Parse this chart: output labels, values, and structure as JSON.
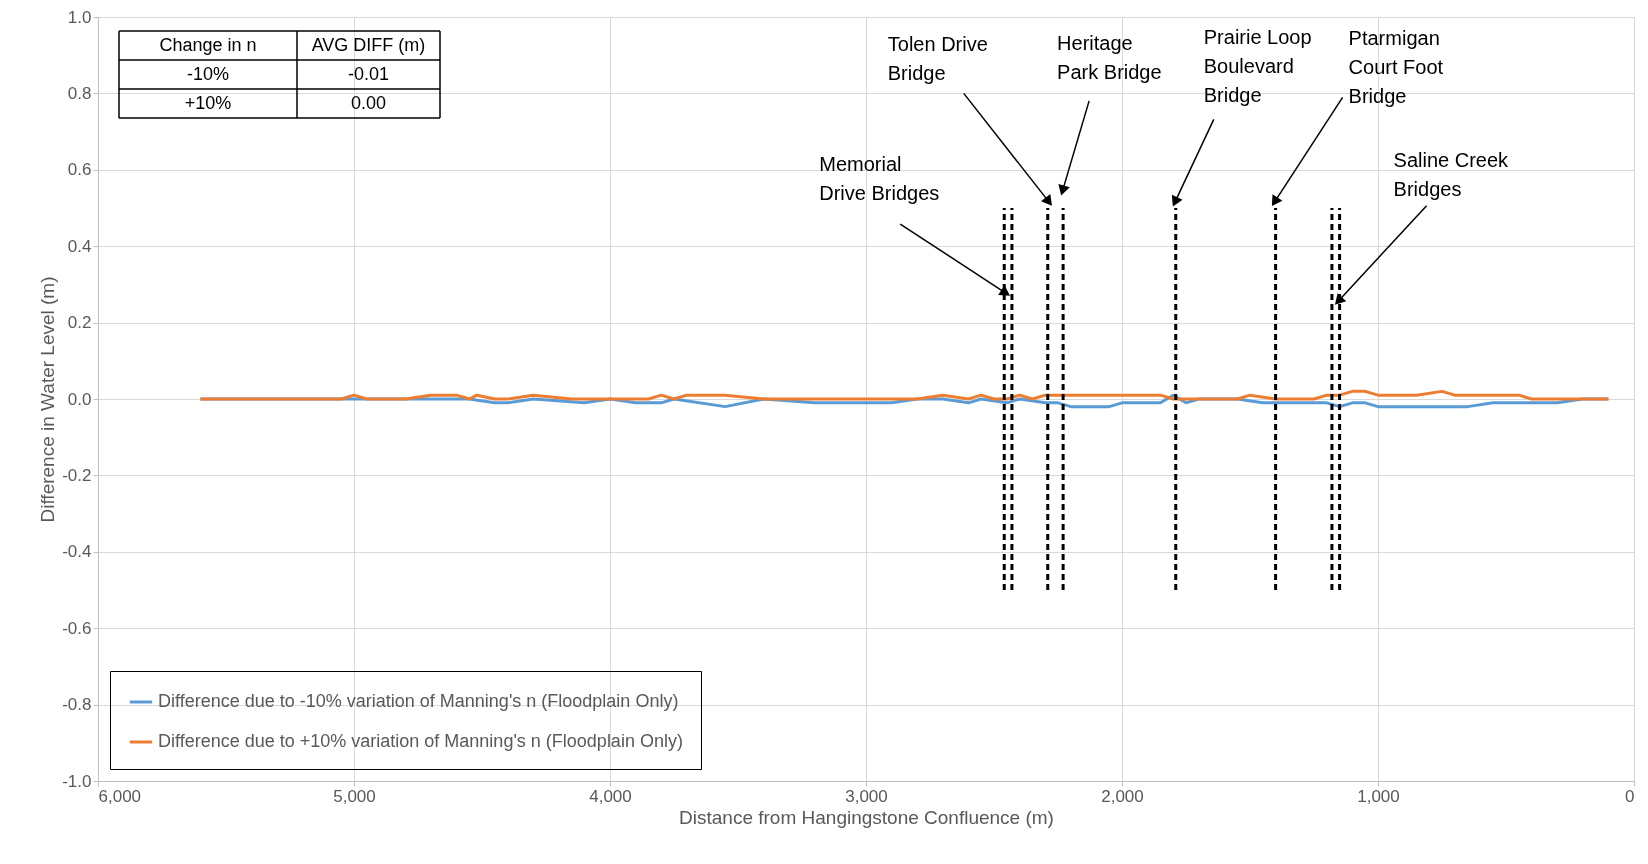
{
  "chart_data": {
    "type": "line",
    "xlabel": "Distance from Hangingstone Confluence (m)",
    "ylabel": "Difference in Water Level (m)",
    "xlim": [
      6000,
      0
    ],
    "xticks": [
      {
        "value": 6000,
        "label": "6,000"
      },
      {
        "value": 5000,
        "label": "5,000"
      },
      {
        "value": 4000,
        "label": "4,000"
      },
      {
        "value": 3000,
        "label": "3,000"
      },
      {
        "value": 2000,
        "label": "2,000"
      },
      {
        "value": 1000,
        "label": "1,000"
      },
      0
    ],
    "ylim": [
      -1,
      1
    ],
    "yticks": [
      {
        "value": -1,
        "label": "-1.0"
      },
      {
        "value": -0.8,
        "label": "-0.8"
      },
      {
        "value": -0.6,
        "label": "-0.6"
      },
      {
        "value": -0.4,
        "label": "-0.4"
      },
      {
        "value": -0.2,
        "label": "-0.2"
      },
      {
        "value": 0,
        "label": "0.0"
      },
      {
        "value": 0.2,
        "label": "0.2"
      },
      {
        "value": 0.4,
        "label": "0.4"
      },
      {
        "value": 0.6,
        "label": "0.6"
      },
      {
        "value": 0.8,
        "label": "0.8"
      },
      {
        "value": 1,
        "label": "1.0"
      }
    ],
    "grid": true,
    "legend": "bottom left",
    "series": [
      {
        "name": "Difference due to -10% variation of Manning's n (Floodplain Only)",
        "color": "#5b9bd5",
        "x": [
          5600,
          4550,
          4450,
          4400,
          4300,
          4100,
          4000,
          3900,
          3800,
          3750,
          3550,
          3400,
          3200,
          2900,
          2800,
          2700,
          2600,
          2550,
          2450,
          2400,
          2300,
          2250,
          2200,
          2050,
          2000,
          1850,
          1800,
          1750,
          1700,
          1550,
          1450,
          1200,
          1150,
          1100,
          1050,
          1000,
          650,
          550,
          300,
          200,
          100
        ],
        "values": [
          0,
          0,
          -0.01,
          -0.01,
          0,
          -0.01,
          0,
          -0.01,
          -0.01,
          0,
          -0.02,
          0,
          -0.01,
          -0.01,
          0,
          0,
          -0.01,
          0,
          -0.01,
          0,
          -0.01,
          -0.01,
          -0.02,
          -0.02,
          -0.01,
          -0.01,
          0.01,
          -0.01,
          0,
          0,
          -0.01,
          -0.01,
          -0.02,
          -0.01,
          -0.01,
          -0.02,
          -0.02,
          -0.01,
          -0.01,
          0,
          0
        ]
      },
      {
        "name": "Difference due to +10% variation of Manning's n (Floodplain Only)",
        "color": "#ed7d31",
        "x": [
          5600,
          5050,
          5000,
          4950,
          4800,
          4700,
          4600,
          4550,
          4520,
          4450,
          4400,
          4300,
          4150,
          3850,
          3800,
          3750,
          3700,
          3550,
          3400,
          2800,
          2700,
          2600,
          2550,
          2500,
          2450,
          2400,
          2350,
          2300,
          1850,
          1800,
          1550,
          1500,
          1400,
          1250,
          1200,
          1150,
          1100,
          1050,
          1000,
          850,
          750,
          700,
          450,
          400,
          100
        ],
        "values": [
          0,
          0,
          0.01,
          0,
          0,
          0.01,
          0.01,
          0,
          0.01,
          0,
          0,
          0.01,
          0,
          0,
          0.01,
          0,
          0.01,
          0.01,
          0,
          0,
          0.01,
          0,
          0.01,
          0,
          0,
          0.01,
          0,
          0.01,
          0.01,
          0,
          0,
          0.01,
          0,
          0,
          0.01,
          0.01,
          0.02,
          0.02,
          0.01,
          0.01,
          0.02,
          0.01,
          0.01,
          0,
          0
        ]
      },
      {
        "color": "#000000",
        "line_style": "dashed",
        "x": [
          2460,
          2460
        ],
        "values": [
          -0.5,
          0.5
        ]
      },
      {
        "color": "#000000",
        "line_style": "dashed",
        "x": [
          2430,
          2430
        ],
        "values": [
          -0.5,
          0.5
        ]
      },
      {
        "color": "#000000",
        "line_style": "dashed",
        "x": [
          2290,
          2290
        ],
        "values": [
          -0.5,
          0.5
        ]
      },
      {
        "color": "#000000",
        "line_style": "dashed",
        "x": [
          2230,
          2230
        ],
        "values": [
          -0.5,
          0.5
        ]
      },
      {
        "color": "#000000",
        "line_style": "dashed",
        "x": [
          1790,
          1790
        ],
        "values": [
          -0.5,
          0.5
        ]
      },
      {
        "color": "#000000",
        "line_style": "dashed",
        "x": [
          1400,
          1400
        ],
        "values": [
          -0.5,
          0.5
        ]
      },
      {
        "color": "#000000",
        "line_style": "dashed",
        "x": [
          1180,
          1180
        ],
        "values": [
          -0.5,
          0.5
        ]
      },
      {
        "color": "#000000",
        "line_style": "dashed",
        "x": [
          1150,
          1150
        ],
        "values": [
          -0.5,
          0.5
        ]
      }
    ],
    "annotations": [
      "Change in n",
      "AVG DIFF (m)",
      "-10%",
      "-0.01",
      "+10%",
      "0.00",
      {
        "text": "Memorial\nDrive Bridges",
        "x": 2460,
        "y": 0.28
      },
      {
        "text": "Tolen Drive\nBridge",
        "x": 2290,
        "y": 0.52
      },
      {
        "text": "Heritage\nPark Bridge",
        "x": 2230,
        "y": 0.55
      },
      {
        "text": "Prairie Loop\nBoulevard\nBridge",
        "x": 1790,
        "y": 0.52
      },
      {
        "text": "Ptarmigan\nCourt Foot\nBridge",
        "x": 1400,
        "y": 0.52
      },
      {
        "text": "Saline Creek\nBridges",
        "x": 1150,
        "y": 0.26
      }
    ]
  }
}
